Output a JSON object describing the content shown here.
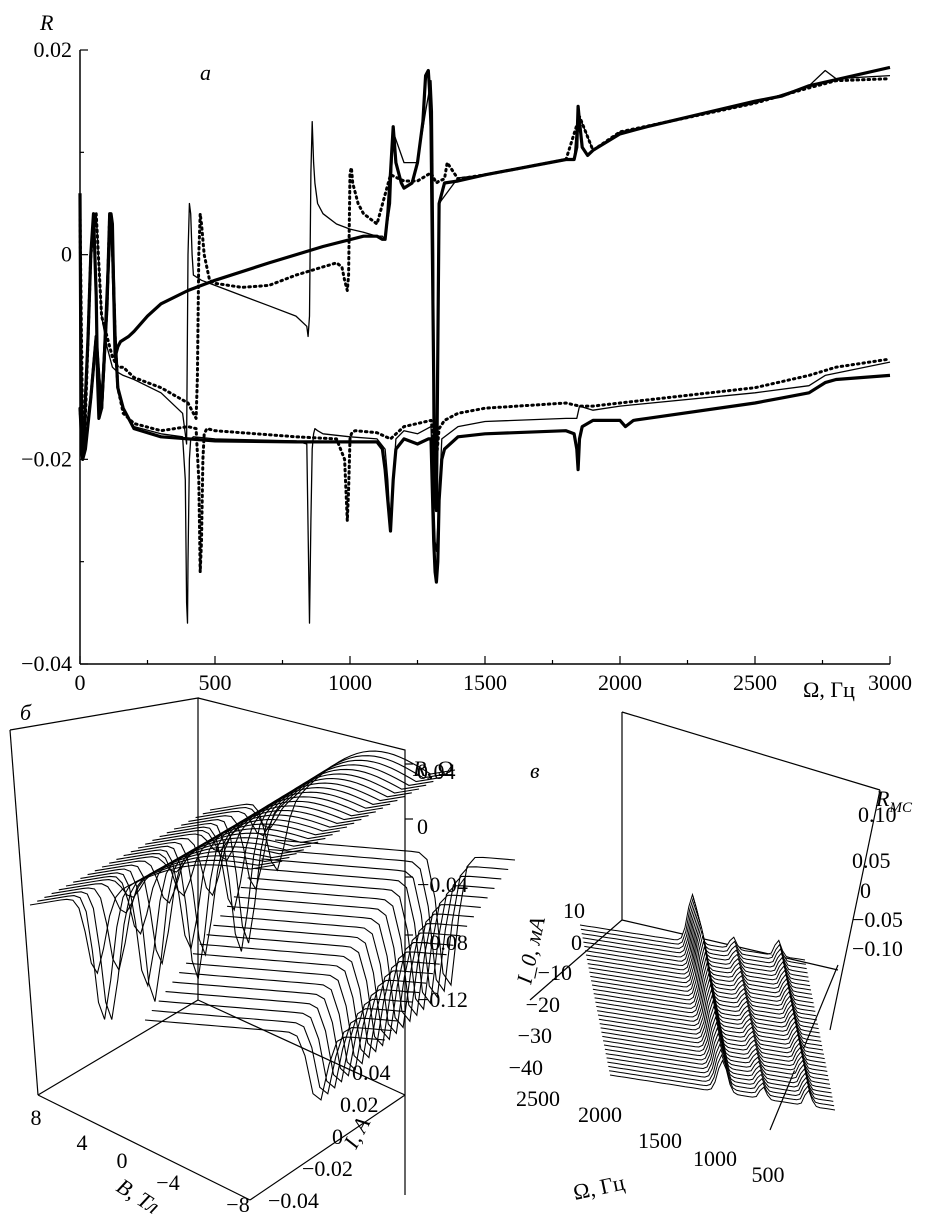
{
  "chart_data": [
    {
      "panel": "a",
      "type": "line",
      "ylabel": "R",
      "xlabel": "Ω, Гц",
      "xlim": [
        0,
        3000
      ],
      "ylim": [
        -0.04,
        0.02
      ],
      "x_ticks": [
        "0",
        "500",
        "1000",
        "1500",
        "2000",
        "2500",
        "3000"
      ],
      "y_ticks": [
        "0.02",
        "0",
        "−0.02",
        "−0.04"
      ],
      "series": [
        {
          "style": "thick",
          "x": [
            0,
            5,
            10,
            15,
            20,
            30,
            40,
            50,
            60,
            65,
            70,
            80,
            90,
            100,
            110,
            115,
            120,
            125,
            130,
            140,
            150,
            180,
            200,
            250,
            300,
            400,
            500,
            700,
            900,
            1050,
            1100,
            1120,
            1130,
            1140,
            1150,
            1160,
            1170,
            1190,
            1200,
            1230,
            1250,
            1270,
            1280,
            1290,
            1295,
            1300,
            1305,
            1310,
            1312,
            1315,
            1320,
            1330,
            1350,
            1400,
            1500,
            1800,
            1830,
            1840,
            1845,
            1850,
            1860,
            1880,
            1900,
            2000,
            2100,
            2500,
            2600,
            2700,
            3000
          ],
          "y": [
            0.006,
            -0.019,
            -0.02,
            -0.018,
            -0.014,
            -0.008,
            0.0,
            0.004,
            -0.004,
            -0.012,
            -0.016,
            -0.015,
            -0.01,
            -0.004,
            0.002,
            0.004,
            0.003,
            -0.004,
            -0.01,
            -0.009,
            -0.0085,
            -0.008,
            -0.0075,
            -0.006,
            -0.0048,
            -0.0035,
            -0.0025,
            -0.0008,
            0.0008,
            0.0018,
            0.0018,
            0.0015,
            0.0015,
            0.004,
            0.008,
            0.0125,
            0.009,
            0.007,
            0.0065,
            0.007,
            0.009,
            0.013,
            0.0175,
            0.018,
            0.016,
            0.0125,
            0.0,
            -0.012,
            -0.02,
            -0.024,
            -0.025,
            0.005,
            0.007,
            0.0072,
            0.0078,
            0.0093,
            0.0093,
            0.0105,
            0.0145,
            0.013,
            0.0105,
            0.0097,
            0.0102,
            0.0118,
            0.0125,
            0.015,
            0.0155,
            0.0165,
            0.0183
          ]
        },
        {
          "style": "thin",
          "x": [
            0,
            10,
            20,
            40,
            60,
            80,
            100,
            120,
            140,
            160,
            200,
            300,
            380,
            390,
            395,
            400,
            405,
            410,
            415,
            420,
            450,
            500,
            600,
            700,
            800,
            840,
            845,
            850,
            855,
            860,
            865,
            870,
            880,
            900,
            950,
            1000,
            1050,
            1100,
            1120,
            1130,
            1150,
            1160,
            1200,
            1250,
            1280,
            1300,
            1305,
            1310,
            1312,
            1315,
            1320,
            1330,
            1400,
            1500,
            1800,
            1830,
            1845,
            1850,
            1900,
            2000,
            2500,
            2700,
            2760,
            2800,
            3000
          ],
          "y": [
            0.004,
            -0.017,
            -0.016,
            0.0,
            0.004,
            -0.006,
            -0.009,
            -0.011,
            -0.0115,
            -0.0118,
            -0.0122,
            -0.0135,
            -0.0155,
            -0.0175,
            -0.0185,
            0.0,
            0.005,
            0.004,
            0.0,
            -0.002,
            -0.0025,
            -0.003,
            -0.004,
            -0.005,
            -0.006,
            -0.007,
            -0.008,
            -0.006,
            0.008,
            0.013,
            0.009,
            0.007,
            0.005,
            0.004,
            0.003,
            0.0025,
            0.0022,
            0.0018,
            0.0018,
            0.0015,
            0.005,
            0.012,
            0.009,
            0.009,
            0.014,
            0.017,
            0.014,
            0.0,
            -0.02,
            -0.024,
            -0.025,
            0.005,
            0.0075,
            0.0078,
            0.0093,
            0.0093,
            0.0145,
            0.0135,
            0.0102,
            0.012,
            0.0148,
            0.0165,
            0.018,
            0.0172,
            0.0175
          ]
        },
        {
          "style": "dotted",
          "x": [
            0,
            10,
            20,
            40,
            60,
            80,
            100,
            120,
            140,
            160,
            200,
            300,
            400,
            420,
            430,
            435,
            440,
            445,
            450,
            460,
            480,
            500,
            600,
            700,
            800,
            900,
            950,
            970,
            980,
            990,
            995,
            1000,
            1005,
            1010,
            1030,
            1050,
            1100,
            1150,
            1200,
            1250,
            1300,
            1320,
            1330,
            1350,
            1360,
            1400,
            1500,
            1800,
            1850,
            1900,
            2000,
            2500,
            2700,
            2800,
            3000
          ],
          "y": [
            0.004,
            -0.018,
            -0.016,
            0.0,
            0.004,
            -0.006,
            -0.008,
            -0.01,
            -0.011,
            -0.011,
            -0.012,
            -0.013,
            -0.0145,
            -0.0155,
            -0.016,
            -0.012,
            0.0,
            0.004,
            0.003,
            0.0,
            -0.0025,
            -0.0028,
            -0.0032,
            -0.003,
            -0.002,
            -0.0012,
            -0.0008,
            -0.0012,
            -0.0025,
            -0.0035,
            -0.002,
            0.008,
            0.0085,
            0.007,
            0.005,
            0.004,
            0.003,
            0.0078,
            0.0072,
            0.0072,
            0.008,
            0.007,
            0.0072,
            0.0074,
            0.009,
            0.0074,
            0.0078,
            0.0093,
            0.0135,
            0.0102,
            0.012,
            0.0148,
            0.0163,
            0.017,
            0.0172
          ]
        },
        {
          "style": "thick",
          "x": [
            0,
            10,
            20,
            40,
            60,
            70,
            80,
            100,
            110,
            120,
            130,
            140,
            160,
            200,
            300,
            500,
            800,
            1000,
            1100,
            1120,
            1130,
            1140,
            1150,
            1160,
            1170,
            1200,
            1250,
            1290,
            1300,
            1310,
            1315,
            1320,
            1325,
            1330,
            1340,
            1350,
            1400,
            1500,
            1800,
            1830,
            1840,
            1845,
            1850,
            1860,
            1900,
            2000,
            2020,
            2050,
            2100,
            2500,
            2600,
            2700,
            2760,
            2800,
            3000
          ],
          "y": [
            -0.015,
            -0.02,
            -0.019,
            -0.014,
            -0.008,
            -0.012,
            -0.015,
            -0.005,
            0.004,
            0.001,
            -0.008,
            -0.013,
            -0.015,
            -0.017,
            -0.0178,
            -0.0182,
            -0.0183,
            -0.0183,
            -0.0183,
            -0.019,
            -0.021,
            -0.024,
            -0.027,
            -0.022,
            -0.019,
            -0.018,
            -0.0185,
            -0.018,
            -0.018,
            -0.028,
            -0.031,
            -0.032,
            -0.03,
            -0.024,
            -0.02,
            -0.019,
            -0.0178,
            -0.0175,
            -0.0172,
            -0.0175,
            -0.019,
            -0.021,
            -0.018,
            -0.0168,
            -0.0162,
            -0.0162,
            -0.0168,
            -0.0162,
            -0.016,
            -0.0145,
            -0.014,
            -0.0135,
            -0.0125,
            -0.0122,
            -0.0118
          ]
        },
        {
          "style": "thin",
          "x": [
            0,
            10,
            20,
            40,
            60,
            70,
            80,
            100,
            110,
            120,
            130,
            140,
            160,
            200,
            300,
            380,
            390,
            395,
            398,
            400,
            405,
            410,
            420,
            500,
            800,
            840,
            845,
            850,
            855,
            860,
            865,
            870,
            880,
            900,
            1000,
            1100,
            1130,
            1140,
            1150,
            1160,
            1170,
            1200,
            1250,
            1300,
            1310,
            1315,
            1320,
            1330,
            1340,
            1400,
            1500,
            1800,
            1840,
            1850,
            1900,
            2000,
            2500,
            2700,
            2760,
            3000
          ],
          "y": [
            -0.015,
            -0.019,
            -0.018,
            -0.014,
            -0.008,
            -0.012,
            -0.015,
            -0.005,
            0.004,
            0.001,
            -0.008,
            -0.013,
            -0.015,
            -0.0168,
            -0.0175,
            -0.0178,
            -0.022,
            -0.034,
            -0.036,
            -0.03,
            -0.02,
            -0.018,
            -0.0178,
            -0.018,
            -0.0182,
            -0.0185,
            -0.027,
            -0.036,
            -0.026,
            -0.019,
            -0.0175,
            -0.017,
            -0.0172,
            -0.0175,
            -0.0178,
            -0.018,
            -0.019,
            -0.022,
            -0.027,
            -0.022,
            -0.018,
            -0.0172,
            -0.0175,
            -0.0168,
            -0.024,
            -0.028,
            -0.029,
            -0.024,
            -0.018,
            -0.0168,
            -0.0163,
            -0.016,
            -0.016,
            -0.0148,
            -0.0152,
            -0.0148,
            -0.0135,
            -0.0128,
            -0.0118,
            -0.0105
          ]
        },
        {
          "style": "dotted",
          "x": [
            0,
            10,
            20,
            40,
            60,
            70,
            80,
            100,
            110,
            120,
            130,
            140,
            160,
            200,
            300,
            400,
            430,
            440,
            445,
            450,
            455,
            460,
            470,
            500,
            800,
            950,
            980,
            990,
            995,
            1000,
            1005,
            1010,
            1020,
            1100,
            1150,
            1200,
            1250,
            1300,
            1310,
            1320,
            1330,
            1350,
            1400,
            1500,
            1800,
            1850,
            1900,
            2000,
            2500,
            2700,
            2800,
            3000
          ],
          "y": [
            -0.015,
            -0.019,
            -0.018,
            -0.014,
            -0.008,
            -0.012,
            -0.015,
            -0.005,
            0.004,
            0.001,
            -0.008,
            -0.013,
            -0.0155,
            -0.0165,
            -0.0172,
            -0.0168,
            -0.017,
            -0.022,
            -0.031,
            -0.028,
            -0.02,
            -0.0175,
            -0.017,
            -0.0172,
            -0.0178,
            -0.018,
            -0.02,
            -0.026,
            -0.023,
            -0.018,
            -0.0175,
            -0.0173,
            -0.0172,
            -0.0174,
            -0.018,
            -0.0168,
            -0.0165,
            -0.0162,
            -0.018,
            -0.02,
            -0.017,
            -0.0162,
            -0.0155,
            -0.015,
            -0.0145,
            -0.0148,
            -0.0148,
            -0.0145,
            -0.013,
            -0.0118,
            -0.011,
            -0.0102
          ]
        }
      ]
    },
    {
      "panel": "б",
      "type": "surface-3d",
      "zlabel": "R, Ω",
      "xlabel": "B, Тл",
      "ylabel": "I, A",
      "z_ticks": [
        "0.04",
        "0",
        "−0.04",
        "−0.08",
        "−0.12"
      ],
      "x_ticks": [
        "8",
        "4",
        "0",
        "−4",
        "−8"
      ],
      "y_ticks": [
        "0.04",
        "0.02",
        "0",
        "−0.02",
        "−0.04"
      ]
    },
    {
      "panel": "в",
      "type": "surface-3d",
      "zlabel": "R_MC",
      "ylabel": "I_0, мА",
      "xlabel": "Ω, Гц",
      "z_ticks": [
        "0.10",
        "0.05",
        "0",
        "−0.05",
        "−0.10"
      ],
      "y_ticks": [
        "10",
        "0",
        "−10",
        "−20",
        "−30",
        "−40"
      ],
      "x_ticks": [
        "2500",
        "2000",
        "1500",
        "1000",
        "500"
      ]
    }
  ]
}
